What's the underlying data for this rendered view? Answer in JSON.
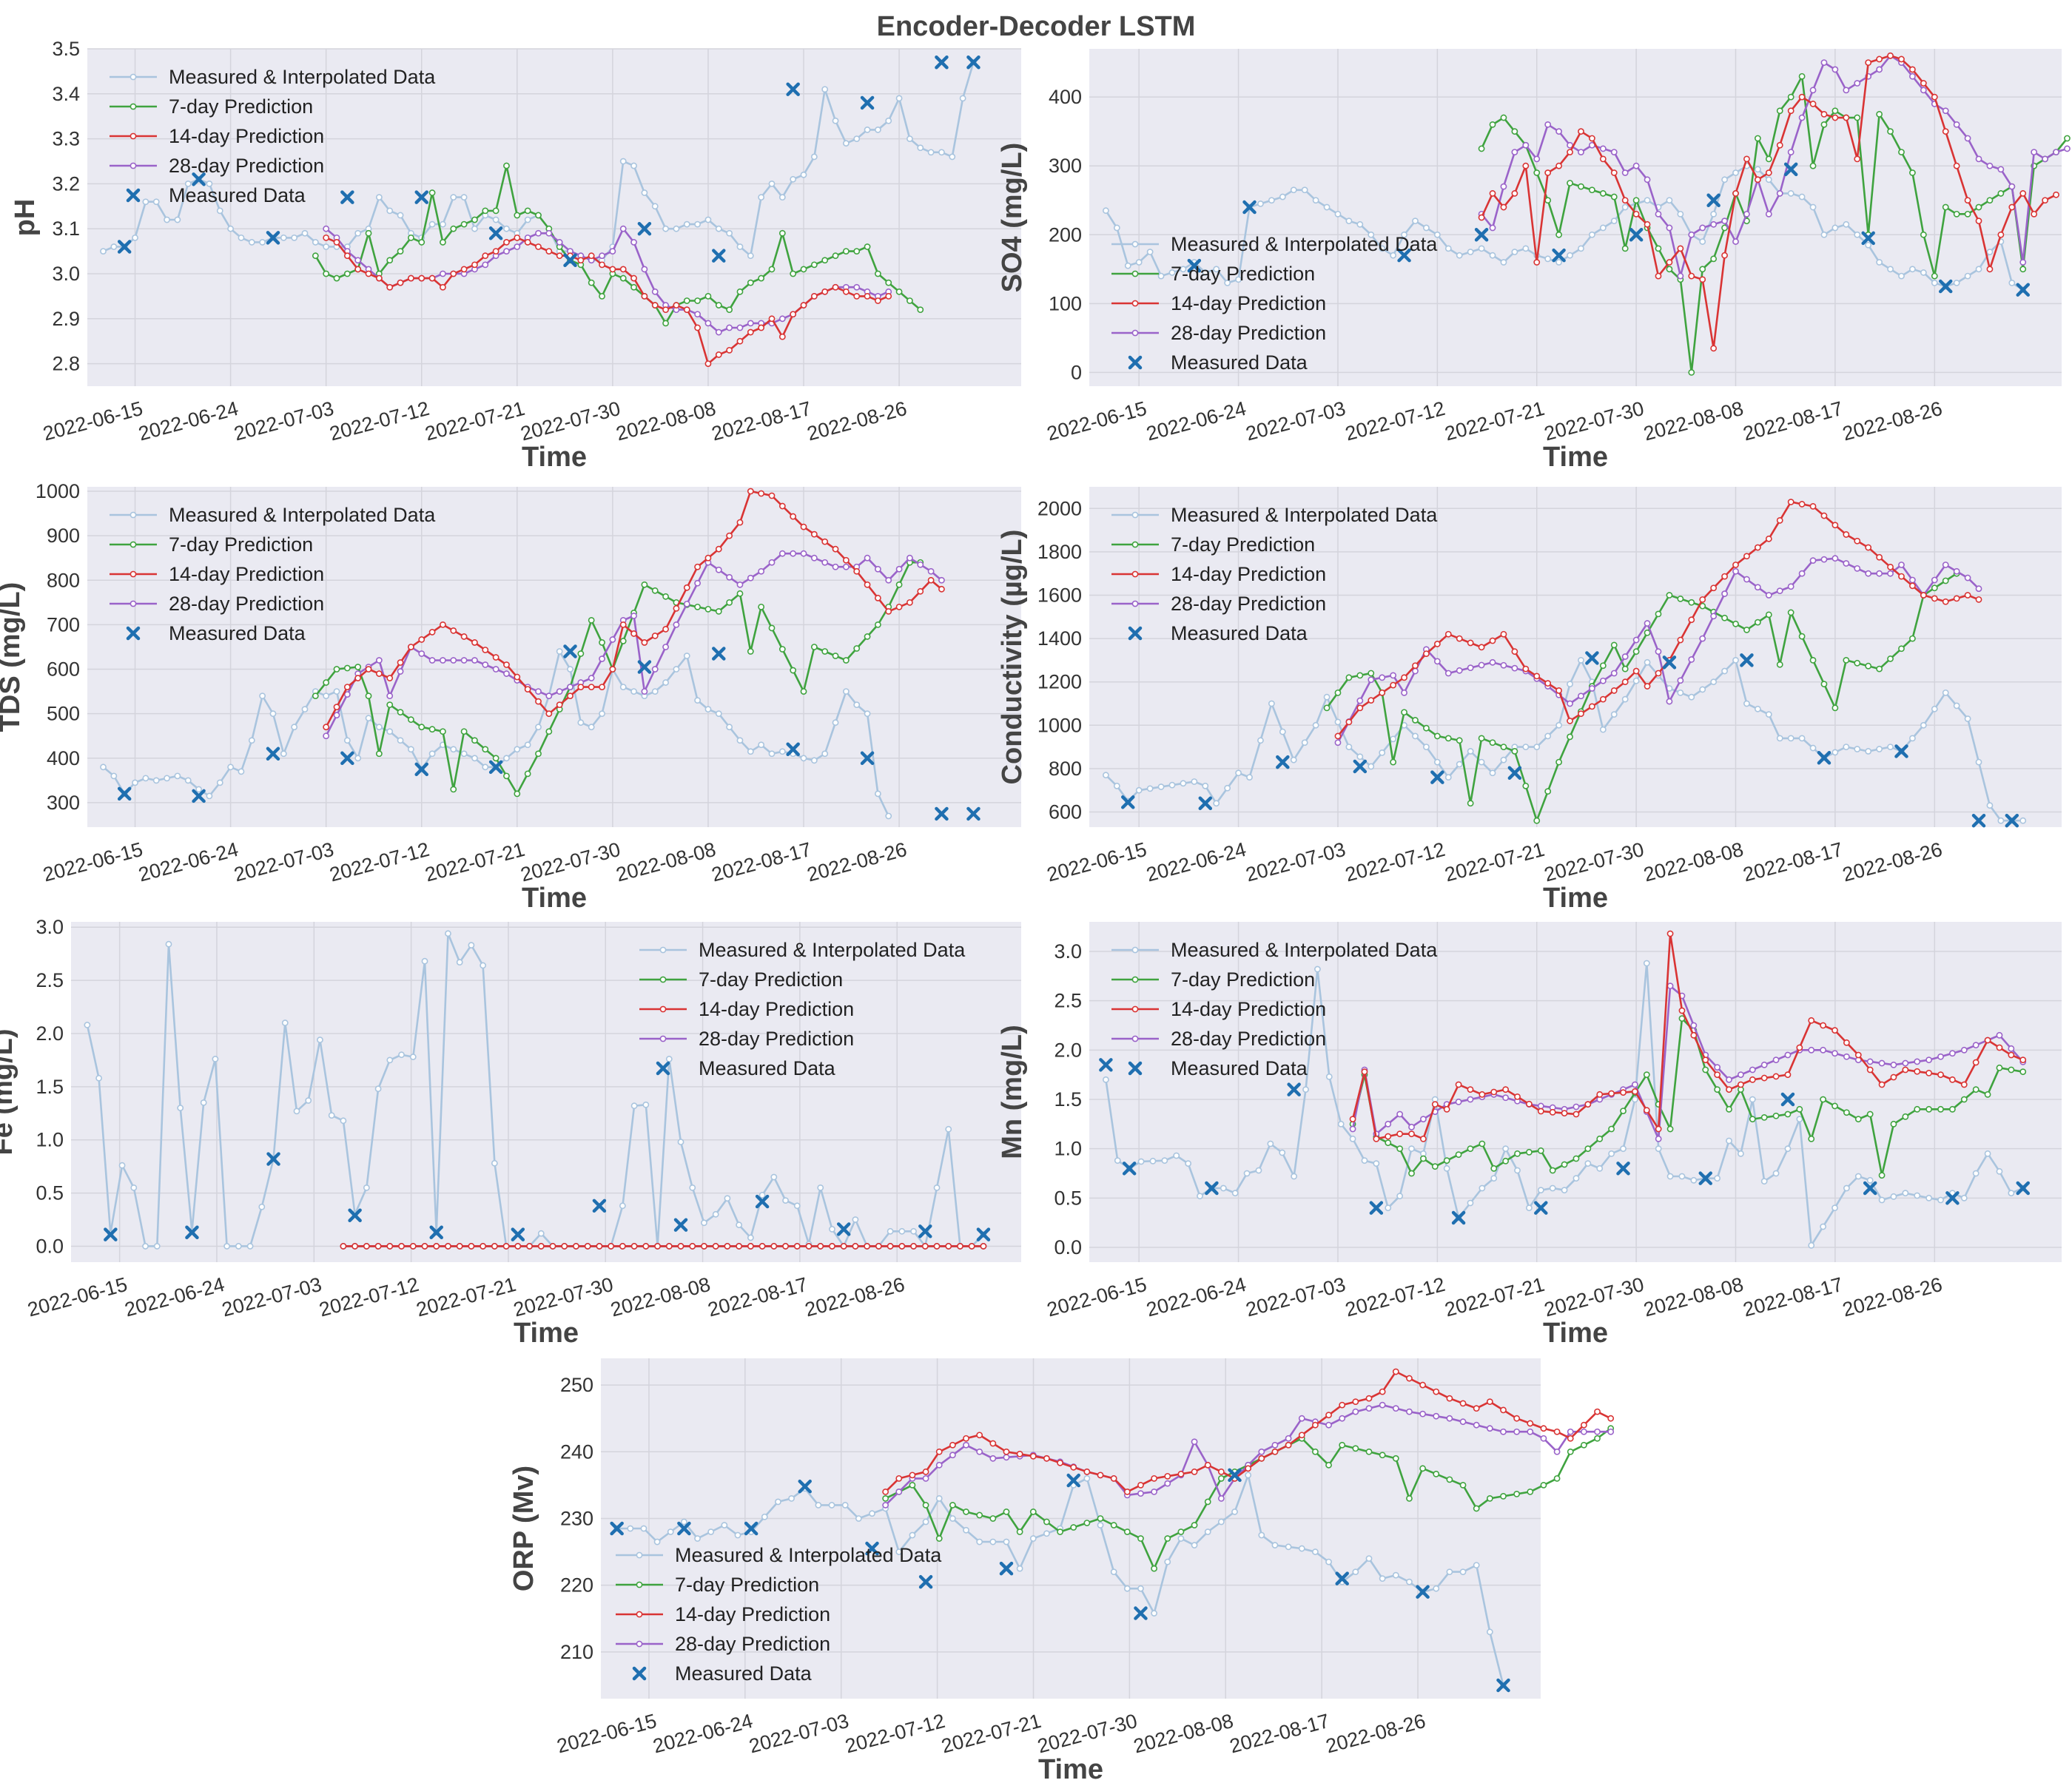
{
  "figure": {
    "title": "Encoder-Decoder LSTM"
  },
  "colors": {
    "measured_interp": "#a9c4de",
    "pred7": "#3fa33f",
    "pred14": "#d93434",
    "pred28": "#9a63c9",
    "measured": "#1f6fb0",
    "panel_bg": "#eaeaf2",
    "grid": "#d4d4dc"
  },
  "legend_labels": [
    "Measured & Interpolated Data",
    "7-day Prediction",
    "14-day Prediction",
    "28-day Prediction",
    "Measured Data"
  ],
  "date_ticks": [
    "2022-06-15",
    "2022-06-24",
    "2022-07-03",
    "2022-07-12",
    "2022-07-21",
    "2022-07-30",
    "2022-08-08",
    "2022-08-17",
    "2022-08-26"
  ],
  "chart_data": [
    {
      "id": "ph",
      "type": "line",
      "ylabel": "pH",
      "xlabel": "Time",
      "ylim": [
        2.75,
        3.5
      ],
      "yticks": [
        2.8,
        2.9,
        3.0,
        3.1,
        3.2,
        3.3,
        3.4,
        3.5
      ],
      "legend": "top-left",
      "series": {
        "measured_interp": [
          3.05,
          3.06,
          3.06,
          3.08,
          3.16,
          3.16,
          3.12,
          3.12,
          3.2,
          3.21,
          3.2,
          3.14,
          3.1,
          3.08,
          3.07,
          3.07,
          3.08,
          3.08,
          3.08,
          3.09,
          3.07,
          3.06,
          3.06,
          3.06,
          3.09,
          3.1,
          3.17,
          3.14,
          3.13,
          3.09,
          3.08,
          3.11,
          3.11,
          3.17,
          3.17,
          3.1,
          3.13,
          3.12,
          3.1,
          3.09,
          3.12,
          3.13,
          3.1,
          3.05,
          3.05,
          3.04,
          3.03,
          3.03,
          3.06,
          3.25,
          3.24,
          3.18,
          3.15,
          3.1,
          3.1,
          3.11,
          3.11,
          3.12,
          3.1,
          3.09,
          3.06,
          3.04,
          3.17,
          3.2,
          3.17,
          3.21,
          3.22,
          3.26,
          3.41,
          3.34,
          3.29,
          3.3,
          3.32,
          3.32,
          3.34,
          3.39,
          3.3,
          3.28,
          3.27,
          3.27,
          3.26,
          3.39,
          3.47
        ],
        "pred7_start": 20,
        "pred7": [
          3.04,
          3.0,
          2.99,
          3.0,
          3.01,
          3.09,
          3.0,
          3.03,
          3.05,
          3.08,
          3.07,
          3.18,
          3.07,
          3.1,
          3.11,
          3.12,
          3.14,
          3.14,
          3.24,
          3.13,
          3.14,
          3.13,
          3.1,
          3.06,
          3.03,
          3.02,
          2.98,
          2.95,
          3.0,
          2.99,
          2.97,
          2.95,
          2.93,
          2.89,
          2.93,
          2.94,
          2.94,
          2.95,
          2.93,
          2.92,
          2.96,
          2.98,
          2.99,
          3.01,
          3.09,
          3.0,
          3.01,
          3.02,
          3.03,
          3.04,
          3.05,
          3.05,
          3.06,
          3.0,
          2.98,
          2.96,
          2.94,
          2.92
        ],
        "pred14_start": 21,
        "pred14": [
          3.08,
          3.07,
          3.04,
          3.01,
          3.0,
          2.99,
          2.97,
          2.98,
          2.99,
          2.99,
          2.99,
          2.97,
          3.0,
          3.01,
          3.02,
          3.04,
          3.05,
          3.07,
          3.08,
          3.07,
          3.06,
          3.05,
          3.04,
          3.04,
          3.03,
          3.04,
          3.02,
          3.01,
          3.01,
          2.99,
          2.95,
          2.93,
          2.92,
          2.93,
          2.92,
          2.88,
          2.8,
          2.82,
          2.83,
          2.85,
          2.87,
          2.88,
          2.9,
          2.86,
          2.91,
          2.93,
          2.95,
          2.96,
          2.97,
          2.96,
          2.95,
          2.95,
          2.94,
          2.95
        ],
        "pred28_start": 21,
        "pred28": [
          3.1,
          3.08,
          3.05,
          3.03,
          3.01,
          2.99,
          2.97,
          2.98,
          2.99,
          2.99,
          2.99,
          3.0,
          3.0,
          3.0,
          3.01,
          3.02,
          3.04,
          3.05,
          3.06,
          3.08,
          3.09,
          3.09,
          3.07,
          3.05,
          3.04,
          3.03,
          3.04,
          3.05,
          3.1,
          3.07,
          3.01,
          2.96,
          2.93,
          2.92,
          2.92,
          2.91,
          2.89,
          2.87,
          2.88,
          2.88,
          2.89,
          2.89,
          2.89,
          2.9,
          2.91,
          2.93,
          2.95,
          2.96,
          2.97,
          2.97,
          2.97,
          2.96,
          2.95,
          2.96
        ],
        "measured_idx": [
          2,
          9,
          16,
          23,
          30,
          37,
          44,
          51,
          58,
          65,
          72,
          79,
          82
        ],
        "measured": [
          3.06,
          3.21,
          3.08,
          3.17,
          3.17,
          3.09,
          3.03,
          3.1,
          3.04,
          3.41,
          3.38,
          3.47,
          3.47
        ]
      }
    },
    {
      "id": "so4",
      "type": "line",
      "ylabel": "SO4  (mg/L)",
      "xlabel": "Time",
      "ylim": [
        -20,
        470
      ],
      "yticks": [
        0,
        100,
        200,
        300,
        400
      ],
      "legend": "center-left",
      "series": {
        "measured_interp": [
          235,
          210,
          155,
          160,
          175,
          140,
          145,
          150,
          160,
          145,
          150,
          130,
          135,
          240,
          245,
          250,
          255,
          265,
          265,
          250,
          240,
          230,
          220,
          215,
          200,
          180,
          170,
          200,
          220,
          210,
          200,
          180,
          170,
          175,
          180,
          170,
          160,
          175,
          180,
          170,
          165,
          160,
          170,
          180,
          200,
          210,
          220,
          240,
          245,
          250,
          240,
          250,
          230,
          200,
          190,
          230,
          280,
          290,
          300,
          295,
          280,
          260,
          260,
          255,
          240,
          200,
          210,
          215,
          200,
          185,
          160,
          150,
          140,
          150,
          145,
          130,
          125,
          130,
          140,
          150,
          175,
          190,
          130,
          120
        ],
        "pred7_start": 34,
        "pred7": [
          325,
          360,
          370,
          350,
          330,
          290,
          250,
          200,
          275,
          270,
          265,
          260,
          255,
          180,
          250,
          210,
          180,
          150,
          135,
          0,
          150,
          165,
          210,
          260,
          220,
          340,
          310,
          380,
          400,
          430,
          300,
          360,
          380,
          370,
          370,
          200,
          375,
          350,
          320,
          290,
          200,
          140,
          240,
          230,
          230,
          240,
          250,
          260,
          270,
          150,
          300,
          310,
          320,
          340
        ],
        "pred14_start": 34,
        "pred14": [
          225,
          260,
          240,
          260,
          300,
          160,
          290,
          300,
          320,
          350,
          340,
          310,
          290,
          250,
          230,
          215,
          140,
          160,
          180,
          140,
          135,
          35,
          170,
          260,
          310,
          280,
          290,
          330,
          380,
          400,
          390,
          375,
          370,
          370,
          310,
          450,
          455,
          460,
          455,
          440,
          420,
          400,
          350,
          300,
          250,
          220,
          150,
          200,
          240,
          260,
          230,
          250,
          258
        ],
        "pred28_start": 34,
        "pred28": [
          230,
          210,
          270,
          320,
          330,
          310,
          360,
          350,
          330,
          320,
          330,
          325,
          320,
          290,
          300,
          280,
          230,
          210,
          140,
          200,
          210,
          215,
          220,
          190,
          230,
          280,
          230,
          260,
          320,
          370,
          410,
          450,
          440,
          410,
          420,
          430,
          440,
          460,
          450,
          430,
          410,
          390,
          380,
          360,
          340,
          310,
          300,
          295,
          270,
          160,
          320,
          310,
          320,
          325
        ]
      },
      "measured_note": "scatter",
      "measured_idx": [
        8,
        13,
        27,
        34,
        41,
        48,
        55,
        62,
        69,
        76,
        83
      ],
      "measured": [
        155,
        240,
        170,
        200,
        170,
        200,
        250,
        295,
        195,
        125,
        120
      ]
    },
    {
      "id": "tds",
      "type": "line",
      "ylabel": "TDS  (mg/L)",
      "xlabel": "Time",
      "ylim": [
        245,
        1010
      ],
      "yticks": [
        300,
        400,
        500,
        600,
        700,
        800,
        900,
        1000
      ],
      "legend": "top-left",
      "series": {
        "measured_interp": [
          380,
          360,
          320,
          345,
          355,
          350,
          355,
          360,
          350,
          330,
          315,
          345,
          380,
          370,
          440,
          540,
          500,
          410,
          470,
          510,
          550,
          540,
          550,
          440,
          400,
          490,
          470,
          460,
          440,
          420,
          375,
          410,
          430,
          420,
          410,
          400,
          380,
          380,
          400,
          420,
          430,
          470,
          540,
          640,
          600,
          480,
          470,
          500,
          600,
          560,
          550,
          540,
          550,
          570,
          600,
          630,
          530,
          510,
          500,
          470,
          440,
          415,
          430,
          410,
          415,
          410,
          400,
          395,
          410,
          480,
          550,
          520,
          500,
          320,
          270
        ],
        "pred7_start": 20
      },
      "legend_override": true
    },
    {
      "id": "cond",
      "type": "line",
      "ylabel": "Conductivity  (µg/L)",
      "xlabel": "Time",
      "ylim": [
        530,
        2100
      ],
      "yticks": [
        600,
        800,
        1000,
        1200,
        1400,
        1600,
        1800,
        2000
      ],
      "legend": "top-left"
    },
    {
      "id": "fe",
      "type": "line",
      "ylabel": "Fe  (mg/L)",
      "xlabel": "Time",
      "ylim": [
        -0.15,
        3.05
      ],
      "yticks": [
        0.0,
        0.5,
        1.0,
        1.5,
        2.0,
        2.5,
        3.0
      ],
      "legend": "top-right"
    },
    {
      "id": "mn",
      "type": "line",
      "ylabel": "Mn  (mg/L)",
      "xlabel": "Time",
      "ylim": [
        -0.15,
        3.3
      ],
      "yticks": [
        0.0,
        0.5,
        1.0,
        1.5,
        2.0,
        2.5,
        3.0
      ],
      "legend": "top-left"
    },
    {
      "id": "orp",
      "type": "line",
      "ylabel": "ORP (Mv)",
      "xlabel": "Time",
      "ylim": [
        203,
        254
      ],
      "yticks": [
        210,
        220,
        230,
        240,
        250
      ],
      "legend": "bottom-left"
    }
  ]
}
